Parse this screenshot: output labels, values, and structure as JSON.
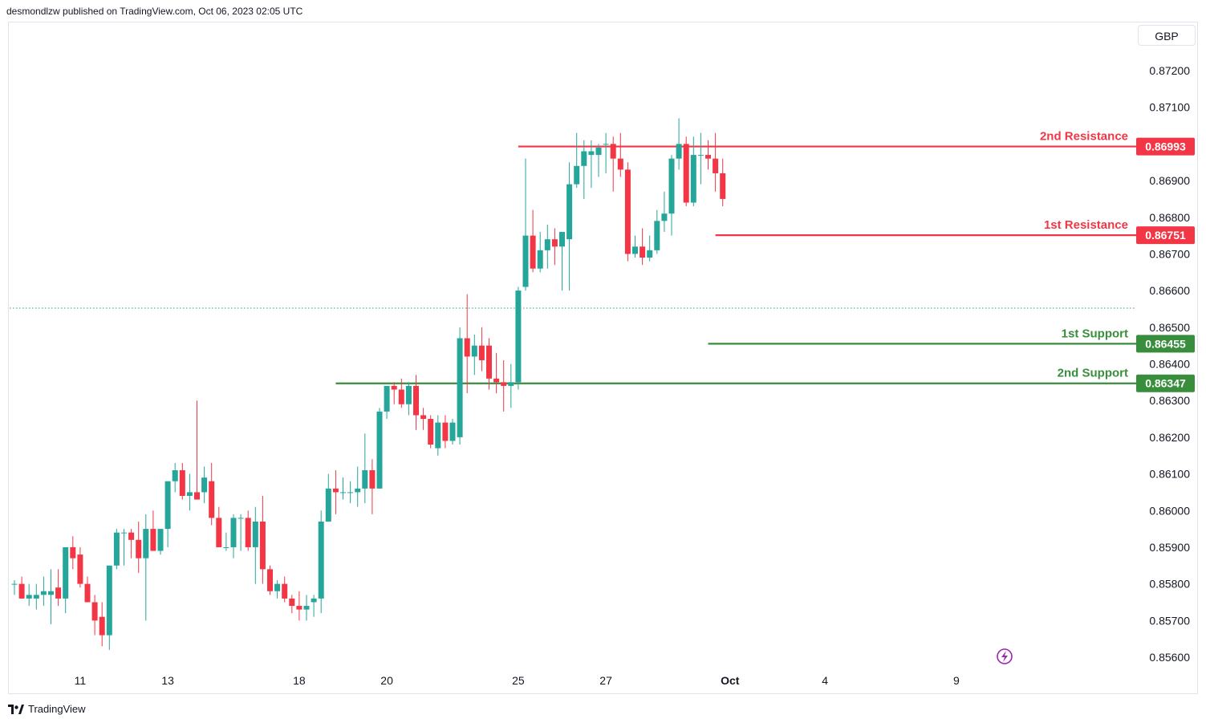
{
  "header": {
    "published_by": "desmondlzw published on TradingView.com, Oct 06, 2023 02:05 UTC"
  },
  "currency_button": "GBP",
  "footer": {
    "brand": "TradingView"
  },
  "colors": {
    "up": "#26a69a",
    "down": "#f23645",
    "resistance": "#f23645",
    "support": "#388e3c",
    "text": "#131722"
  },
  "chart_data": {
    "type": "candlestick",
    "y_tick_labels": [
      "0.87200",
      "0.87100",
      "0.86900",
      "0.86800",
      "0.86700",
      "0.86600",
      "0.86500",
      "0.86400",
      "0.86300",
      "0.86200",
      "0.86100",
      "0.86000",
      "0.85900",
      "0.85800",
      "0.85700",
      "0.85600"
    ],
    "y_ticks": [
      0.872,
      0.871,
      0.869,
      0.868,
      0.867,
      0.866,
      0.865,
      0.864,
      0.863,
      0.862,
      0.861,
      0.86,
      0.859,
      0.858,
      0.857,
      0.856
    ],
    "ylim": [
      0.8554,
      0.8738
    ],
    "x_tick_labels": [
      {
        "label": "11",
        "index": 9
      },
      {
        "label": "13",
        "index": 21
      },
      {
        "label": "18",
        "index": 39
      },
      {
        "label": "20",
        "index": 51
      },
      {
        "label": "25",
        "index": 69
      },
      {
        "label": "27",
        "index": 81
      },
      {
        "label": "Oct",
        "index": 98
      },
      {
        "label": "4",
        "index": 111
      },
      {
        "label": "9",
        "index": 129
      }
    ],
    "levels": [
      {
        "name": "2nd Resistance",
        "value": 0.86993,
        "label": "0.86993",
        "kind": "resistance",
        "from_index": 69
      },
      {
        "name": "1st Resistance",
        "value": 0.86751,
        "label": "0.86751",
        "kind": "resistance",
        "from_index": 96
      },
      {
        "name": "1st Support",
        "value": 0.86455,
        "label": "0.86455",
        "kind": "support",
        "from_index": 95
      },
      {
        "name": "2nd Support",
        "value": 0.86347,
        "label": "0.86347",
        "kind": "support",
        "from_index": 44
      }
    ],
    "current_price": 0.86552,
    "candles": [
      {
        "o": 0.858,
        "h": 0.8581,
        "l": 0.8577,
        "c": 0.858
      },
      {
        "o": 0.858,
        "h": 0.8582,
        "l": 0.8576,
        "c": 0.8576
      },
      {
        "o": 0.8576,
        "h": 0.858,
        "l": 0.8574,
        "c": 0.8577
      },
      {
        "o": 0.8576,
        "h": 0.858,
        "l": 0.8573,
        "c": 0.8577
      },
      {
        "o": 0.8577,
        "h": 0.8582,
        "l": 0.8574,
        "c": 0.8578
      },
      {
        "o": 0.8577,
        "h": 0.8584,
        "l": 0.8569,
        "c": 0.8578
      },
      {
        "o": 0.8579,
        "h": 0.8584,
        "l": 0.8574,
        "c": 0.8576
      },
      {
        "o": 0.8576,
        "h": 0.859,
        "l": 0.8572,
        "c": 0.859
      },
      {
        "o": 0.859,
        "h": 0.8593,
        "l": 0.8584,
        "c": 0.8587
      },
      {
        "o": 0.8588,
        "h": 0.859,
        "l": 0.8579,
        "c": 0.858
      },
      {
        "o": 0.858,
        "h": 0.8582,
        "l": 0.8575,
        "c": 0.8575
      },
      {
        "o": 0.8575,
        "h": 0.8577,
        "l": 0.8566,
        "c": 0.857
      },
      {
        "o": 0.8571,
        "h": 0.8575,
        "l": 0.8563,
        "c": 0.8566
      },
      {
        "o": 0.8566,
        "h": 0.8585,
        "l": 0.8562,
        "c": 0.8585
      },
      {
        "o": 0.8585,
        "h": 0.8595,
        "l": 0.8584,
        "c": 0.8594
      },
      {
        "o": 0.8594,
        "h": 0.8595,
        "l": 0.8585,
        "c": 0.8594
      },
      {
        "o": 0.8594,
        "h": 0.8595,
        "l": 0.8587,
        "c": 0.8592
      },
      {
        "o": 0.8592,
        "h": 0.8597,
        "l": 0.8583,
        "c": 0.8587
      },
      {
        "o": 0.8587,
        "h": 0.8599,
        "l": 0.857,
        "c": 0.8595
      },
      {
        "o": 0.8595,
        "h": 0.86,
        "l": 0.859,
        "c": 0.8589
      },
      {
        "o": 0.8589,
        "h": 0.8595,
        "l": 0.8588,
        "c": 0.8595
      },
      {
        "o": 0.8595,
        "h": 0.8608,
        "l": 0.859,
        "c": 0.8608
      },
      {
        "o": 0.8608,
        "h": 0.8613,
        "l": 0.8605,
        "c": 0.8611
      },
      {
        "o": 0.8611,
        "h": 0.8613,
        "l": 0.8603,
        "c": 0.8604
      },
      {
        "o": 0.8604,
        "h": 0.861,
        "l": 0.86,
        "c": 0.8605
      },
      {
        "o": 0.8605,
        "h": 0.863,
        "l": 0.8603,
        "c": 0.8603
      },
      {
        "o": 0.8605,
        "h": 0.8612,
        "l": 0.8602,
        "c": 0.8609
      },
      {
        "o": 0.8608,
        "h": 0.8613,
        "l": 0.8596,
        "c": 0.8598
      },
      {
        "o": 0.8598,
        "h": 0.8601,
        "l": 0.859,
        "c": 0.859
      },
      {
        "o": 0.859,
        "h": 0.8594,
        "l": 0.8589,
        "c": 0.859
      },
      {
        "o": 0.859,
        "h": 0.8599,
        "l": 0.8587,
        "c": 0.8598
      },
      {
        "o": 0.8598,
        "h": 0.8599,
        "l": 0.8589,
        "c": 0.8598
      },
      {
        "o": 0.8598,
        "h": 0.86,
        "l": 0.8589,
        "c": 0.859
      },
      {
        "o": 0.859,
        "h": 0.8601,
        "l": 0.858,
        "c": 0.8597
      },
      {
        "o": 0.8597,
        "h": 0.8604,
        "l": 0.858,
        "c": 0.8584
      },
      {
        "o": 0.8584,
        "h": 0.8585,
        "l": 0.8577,
        "c": 0.8578
      },
      {
        "o": 0.8578,
        "h": 0.8581,
        "l": 0.8576,
        "c": 0.858
      },
      {
        "o": 0.858,
        "h": 0.8582,
        "l": 0.8575,
        "c": 0.8576
      },
      {
        "o": 0.8576,
        "h": 0.8577,
        "l": 0.8572,
        "c": 0.8574
      },
      {
        "o": 0.8574,
        "h": 0.8578,
        "l": 0.857,
        "c": 0.8573
      },
      {
        "o": 0.8573,
        "h": 0.8577,
        "l": 0.857,
        "c": 0.8574
      },
      {
        "o": 0.8575,
        "h": 0.8577,
        "l": 0.8571,
        "c": 0.8576
      },
      {
        "o": 0.8576,
        "h": 0.86,
        "l": 0.8572,
        "c": 0.8597
      },
      {
        "o": 0.8597,
        "h": 0.861,
        "l": 0.8597,
        "c": 0.8606
      },
      {
        "o": 0.8606,
        "h": 0.8611,
        "l": 0.8599,
        "c": 0.8605
      },
      {
        "o": 0.8605,
        "h": 0.8609,
        "l": 0.8603,
        "c": 0.8605
      },
      {
        "o": 0.8605,
        "h": 0.8608,
        "l": 0.8602,
        "c": 0.8605
      },
      {
        "o": 0.8605,
        "h": 0.8612,
        "l": 0.8601,
        "c": 0.8606
      },
      {
        "o": 0.8606,
        "h": 0.8621,
        "l": 0.8602,
        "c": 0.8611
      },
      {
        "o": 0.8611,
        "h": 0.8614,
        "l": 0.8599,
        "c": 0.8606
      },
      {
        "o": 0.8606,
        "h": 0.8628,
        "l": 0.8606,
        "c": 0.8627
      },
      {
        "o": 0.8627,
        "h": 0.8634,
        "l": 0.8625,
        "c": 0.8634
      },
      {
        "o": 0.8634,
        "h": 0.8635,
        "l": 0.8629,
        "c": 0.8633
      },
      {
        "o": 0.8633,
        "h": 0.8636,
        "l": 0.8628,
        "c": 0.8629
      },
      {
        "o": 0.8629,
        "h": 0.8635,
        "l": 0.8626,
        "c": 0.8634
      },
      {
        "o": 0.8634,
        "h": 0.8637,
        "l": 0.8622,
        "c": 0.8626
      },
      {
        "o": 0.8626,
        "h": 0.8628,
        "l": 0.8622,
        "c": 0.8625
      },
      {
        "o": 0.8625,
        "h": 0.8626,
        "l": 0.8617,
        "c": 0.8618
      },
      {
        "o": 0.8617,
        "h": 0.8626,
        "l": 0.8615,
        "c": 0.8624
      },
      {
        "o": 0.8624,
        "h": 0.8626,
        "l": 0.8617,
        "c": 0.8619
      },
      {
        "o": 0.8619,
        "h": 0.8625,
        "l": 0.8618,
        "c": 0.8624
      },
      {
        "o": 0.862,
        "h": 0.865,
        "l": 0.8618,
        "c": 0.8647
      },
      {
        "o": 0.8647,
        "h": 0.8659,
        "l": 0.8632,
        "c": 0.8642
      },
      {
        "o": 0.8642,
        "h": 0.8648,
        "l": 0.8637,
        "c": 0.8645
      },
      {
        "o": 0.8645,
        "h": 0.865,
        "l": 0.8638,
        "c": 0.8641
      },
      {
        "o": 0.8645,
        "h": 0.8647,
        "l": 0.8633,
        "c": 0.8636
      },
      {
        "o": 0.8636,
        "h": 0.8643,
        "l": 0.8632,
        "c": 0.8635
      },
      {
        "o": 0.8635,
        "h": 0.8641,
        "l": 0.8627,
        "c": 0.8634
      },
      {
        "o": 0.8634,
        "h": 0.864,
        "l": 0.8628,
        "c": 0.8635
      },
      {
        "o": 0.8635,
        "h": 0.8661,
        "l": 0.8633,
        "c": 0.866
      },
      {
        "o": 0.8661,
        "h": 0.8696,
        "l": 0.866,
        "c": 0.8675
      },
      {
        "o": 0.8675,
        "h": 0.8682,
        "l": 0.8665,
        "c": 0.8666
      },
      {
        "o": 0.8666,
        "h": 0.8676,
        "l": 0.8665,
        "c": 0.8671
      },
      {
        "o": 0.8671,
        "h": 0.8678,
        "l": 0.8666,
        "c": 0.8674
      },
      {
        "o": 0.8674,
        "h": 0.8677,
        "l": 0.8667,
        "c": 0.8672
      },
      {
        "o": 0.8672,
        "h": 0.8675,
        "l": 0.866,
        "c": 0.8676
      },
      {
        "o": 0.8674,
        "h": 0.8695,
        "l": 0.866,
        "c": 0.8689
      },
      {
        "o": 0.8689,
        "h": 0.8703,
        "l": 0.8688,
        "c": 0.8694
      },
      {
        "o": 0.8694,
        "h": 0.8701,
        "l": 0.8685,
        "c": 0.8698
      },
      {
        "o": 0.8697,
        "h": 0.8701,
        "l": 0.8688,
        "c": 0.8698
      },
      {
        "o": 0.8697,
        "h": 0.87,
        "l": 0.8691,
        "c": 0.8699
      },
      {
        "o": 0.87,
        "h": 0.8703,
        "l": 0.8692,
        "c": 0.87
      },
      {
        "o": 0.87,
        "h": 0.8702,
        "l": 0.8687,
        "c": 0.8696
      },
      {
        "o": 0.8696,
        "h": 0.8703,
        "l": 0.8691,
        "c": 0.8693
      },
      {
        "o": 0.8693,
        "h": 0.8695,
        "l": 0.8668,
        "c": 0.867
      },
      {
        "o": 0.867,
        "h": 0.8675,
        "l": 0.8669,
        "c": 0.8672
      },
      {
        "o": 0.8672,
        "h": 0.8677,
        "l": 0.8667,
        "c": 0.8669
      },
      {
        "o": 0.8669,
        "h": 0.8675,
        "l": 0.8668,
        "c": 0.8671
      },
      {
        "o": 0.8671,
        "h": 0.8682,
        "l": 0.867,
        "c": 0.8679
      },
      {
        "o": 0.8679,
        "h": 0.8687,
        "l": 0.8676,
        "c": 0.8681
      },
      {
        "o": 0.8681,
        "h": 0.8697,
        "l": 0.8675,
        "c": 0.8696
      },
      {
        "o": 0.8696,
        "h": 0.8707,
        "l": 0.8693,
        "c": 0.87
      },
      {
        "o": 0.87,
        "h": 0.8702,
        "l": 0.8683,
        "c": 0.8684
      },
      {
        "o": 0.8684,
        "h": 0.8702,
        "l": 0.8683,
        "c": 0.8697
      },
      {
        "o": 0.8697,
        "h": 0.8703,
        "l": 0.8689,
        "c": 0.8697
      },
      {
        "o": 0.8697,
        "h": 0.8701,
        "l": 0.8693,
        "c": 0.8696
      },
      {
        "o": 0.8696,
        "h": 0.8703,
        "l": 0.8687,
        "c": 0.8692
      },
      {
        "o": 0.8692,
        "h": 0.8696,
        "l": 0.8683,
        "c": 0.8685
      }
    ]
  }
}
